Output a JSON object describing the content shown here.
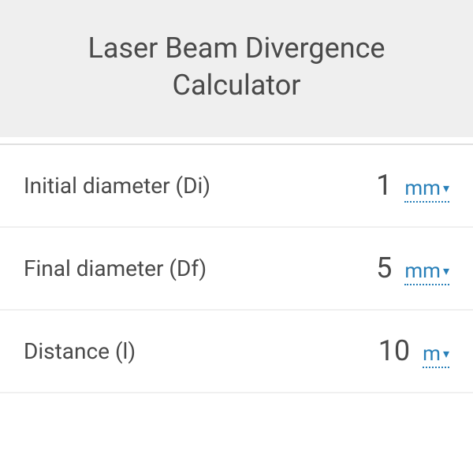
{
  "header": {
    "title_line1": "Laser Beam Divergence",
    "title_line2": "Calculator"
  },
  "rows": [
    {
      "label": "Initial diameter (Di)",
      "value": "1",
      "unit": "mm"
    },
    {
      "label": "Final diameter (Df)",
      "value": "5",
      "unit": "mm"
    },
    {
      "label": "Distance (l)",
      "value": "10",
      "unit": "m"
    }
  ],
  "colors": {
    "header_bg": "#efefef",
    "text": "#4a4a4a",
    "link": "#2980b9",
    "border": "#f0f0f0"
  }
}
